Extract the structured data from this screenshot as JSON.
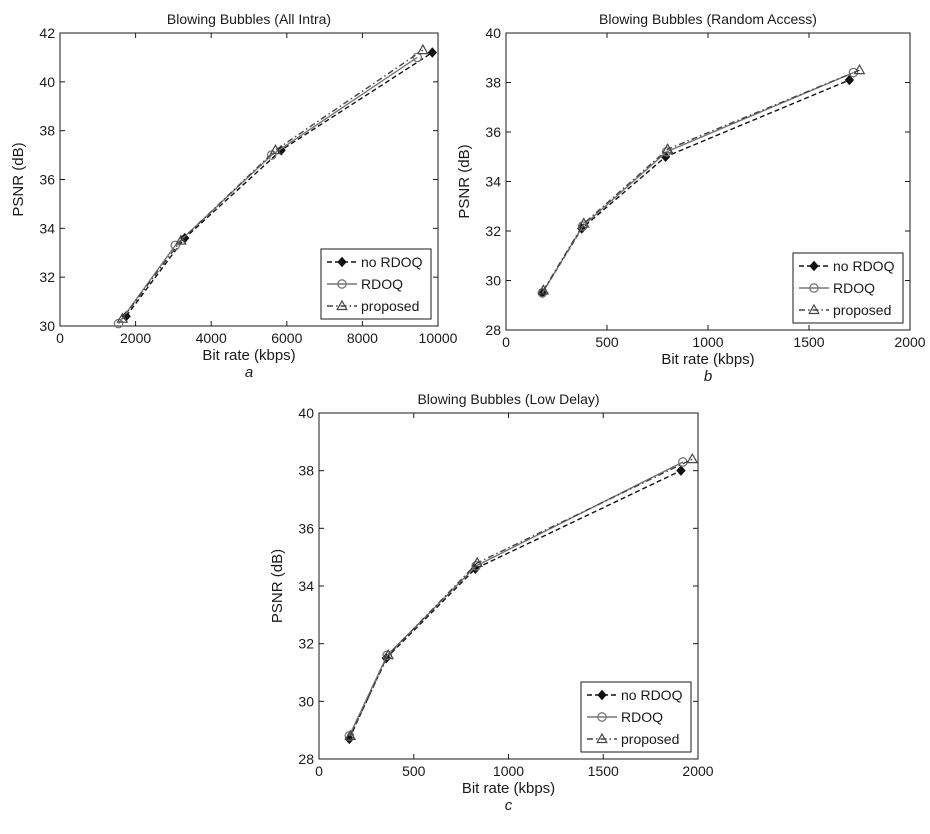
{
  "chart_data": [
    {
      "type": "line",
      "title": "Blowing Bubbles (All Intra)",
      "xlabel": "Bit rate (kbps)",
      "ylabel": "PSNR (dB)",
      "panel_label": "a",
      "xlim": [
        0,
        10000
      ],
      "ylim": [
        30,
        42
      ],
      "xticks": [
        "0",
        "2000",
        "4000",
        "6000",
        "8000",
        "10000"
      ],
      "yticks": [
        "30",
        "32",
        "34",
        "36",
        "38",
        "40",
        "42"
      ],
      "grid": false,
      "legend_position": "bottom-right",
      "series": [
        {
          "name": "no RDOQ",
          "x": [
            1750,
            3300,
            5850,
            9850
          ],
          "y": [
            30.4,
            33.6,
            37.2,
            41.2
          ]
        },
        {
          "name": "RDOQ",
          "x": [
            1550,
            3050,
            5600,
            9450
          ],
          "y": [
            30.1,
            33.3,
            37.0,
            41.0
          ]
        },
        {
          "name": "proposed",
          "x": [
            1650,
            3200,
            5700,
            9600
          ],
          "y": [
            30.3,
            33.5,
            37.2,
            41.3
          ]
        }
      ]
    },
    {
      "type": "line",
      "title": "Blowing Bubbles (Random Access)",
      "xlabel": "Bit rate (kbps)",
      "ylabel": "PSNR (dB)",
      "panel_label": "b",
      "xlim": [
        0,
        2000
      ],
      "ylim": [
        28,
        40
      ],
      "xticks": [
        "0",
        "500",
        "1000",
        "1500",
        "2000"
      ],
      "yticks": [
        "28",
        "30",
        "32",
        "34",
        "36",
        "38",
        "40"
      ],
      "grid": false,
      "legend_position": "bottom-right",
      "series": [
        {
          "name": "no RDOQ",
          "x": [
            180,
            375,
            790,
            1700
          ],
          "y": [
            29.5,
            32.1,
            35.0,
            38.1
          ]
        },
        {
          "name": "RDOQ",
          "x": [
            180,
            380,
            795,
            1720
          ],
          "y": [
            29.5,
            32.2,
            35.2,
            38.4
          ]
        },
        {
          "name": "proposed",
          "x": [
            185,
            385,
            800,
            1750
          ],
          "y": [
            29.6,
            32.3,
            35.3,
            38.5
          ]
        }
      ]
    },
    {
      "type": "line",
      "title": "Blowing Bubbles (Low Delay)",
      "xlabel": "Bit rate (kbps)",
      "ylabel": "PSNR (dB)",
      "panel_label": "c",
      "xlim": [
        0,
        2000
      ],
      "ylim": [
        28,
        40
      ],
      "xticks": [
        "0",
        "500",
        "1000",
        "1500",
        "2000"
      ],
      "yticks": [
        "28",
        "30",
        "32",
        "34",
        "36",
        "38",
        "40"
      ],
      "grid": false,
      "legend_position": "bottom-right",
      "series": [
        {
          "name": "no RDOQ",
          "x": [
            160,
            355,
            825,
            1910
          ],
          "y": [
            28.7,
            31.5,
            34.6,
            38.0
          ]
        },
        {
          "name": "RDOQ",
          "x": [
            160,
            360,
            830,
            1920
          ],
          "y": [
            28.8,
            31.6,
            34.7,
            38.3
          ]
        },
        {
          "name": "proposed",
          "x": [
            165,
            365,
            835,
            1970
          ],
          "y": [
            28.8,
            31.6,
            34.8,
            38.4
          ]
        }
      ]
    }
  ],
  "series_styles": [
    {
      "dash": "5,3",
      "color": "#111111",
      "marker": "diamond-filled"
    },
    {
      "dash": "",
      "color": "#777777",
      "marker": "circle-open"
    },
    {
      "dash": "6,3,1.5,3",
      "color": "#444444",
      "marker": "triangle-open"
    }
  ]
}
